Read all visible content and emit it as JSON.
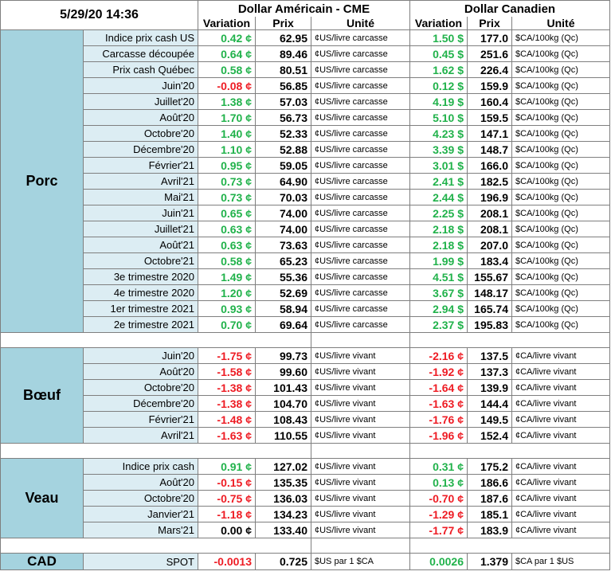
{
  "header": {
    "datetime": "5/29/20 14:36",
    "us_group": "Dollar Américain - CME",
    "ca_group": "Dollar Canadien",
    "variation": "Variation",
    "prix": "Prix",
    "unite": "Unité"
  },
  "colors": {
    "up": "#21b24b",
    "down": "#ee1c24",
    "label_bg": "#a5d3df",
    "row_bg": "#dcedf3"
  },
  "sections": [
    {
      "name": "Porc",
      "rows": [
        {
          "label": "Indice prix cash US",
          "us_var": "0.42 ¢",
          "us_dir": "up",
          "us_price": "62.95",
          "us_unit": "¢US/livre carcasse",
          "ca_var": "1.50 $",
          "ca_dir": "up",
          "ca_price": "177.0",
          "ca_unit": "$CA/100kg (Qc)"
        },
        {
          "label": "Carcasse découpée",
          "us_var": "0.64 ¢",
          "us_dir": "up",
          "us_price": "89.46",
          "us_unit": "¢US/livre carcasse",
          "ca_var": "0.45 $",
          "ca_dir": "up",
          "ca_price": "251.6",
          "ca_unit": "$CA/100kg (Qc)"
        },
        {
          "label": "Prix cash Québec",
          "us_var": "0.58 ¢",
          "us_dir": "up",
          "us_price": "80.51",
          "us_unit": "¢US/livre carcasse",
          "ca_var": "1.62 $",
          "ca_dir": "up",
          "ca_price": "226.4",
          "ca_unit": "$CA/100kg (Qc)"
        },
        {
          "label": "Juin'20",
          "us_var": "-0.08 ¢",
          "us_dir": "down",
          "us_price": "56.85",
          "us_unit": "¢US/livre carcasse",
          "ca_var": "0.12 $",
          "ca_dir": "up",
          "ca_price": "159.9",
          "ca_unit": "$CA/100kg (Qc)"
        },
        {
          "label": "Juillet'20",
          "us_var": "1.38 ¢",
          "us_dir": "up",
          "us_price": "57.03",
          "us_unit": "¢US/livre carcasse",
          "ca_var": "4.19 $",
          "ca_dir": "up",
          "ca_price": "160.4",
          "ca_unit": "$CA/100kg (Qc)"
        },
        {
          "label": "Août'20",
          "us_var": "1.70 ¢",
          "us_dir": "up",
          "us_price": "56.73",
          "us_unit": "¢US/livre carcasse",
          "ca_var": "5.10 $",
          "ca_dir": "up",
          "ca_price": "159.5",
          "ca_unit": "$CA/100kg (Qc)"
        },
        {
          "label": "Octobre'20",
          "us_var": "1.40 ¢",
          "us_dir": "up",
          "us_price": "52.33",
          "us_unit": "¢US/livre carcasse",
          "ca_var": "4.23 $",
          "ca_dir": "up",
          "ca_price": "147.1",
          "ca_unit": "$CA/100kg (Qc)"
        },
        {
          "label": "Décembre'20",
          "us_var": "1.10 ¢",
          "us_dir": "up",
          "us_price": "52.88",
          "us_unit": "¢US/livre carcasse",
          "ca_var": "3.39 $",
          "ca_dir": "up",
          "ca_price": "148.7",
          "ca_unit": "$CA/100kg (Qc)"
        },
        {
          "label": "Février'21",
          "us_var": "0.95 ¢",
          "us_dir": "up",
          "us_price": "59.05",
          "us_unit": "¢US/livre carcasse",
          "ca_var": "3.01 $",
          "ca_dir": "up",
          "ca_price": "166.0",
          "ca_unit": "$CA/100kg (Qc)"
        },
        {
          "label": "Avril'21",
          "us_var": "0.73 ¢",
          "us_dir": "up",
          "us_price": "64.90",
          "us_unit": "¢US/livre carcasse",
          "ca_var": "2.41 $",
          "ca_dir": "up",
          "ca_price": "182.5",
          "ca_unit": "$CA/100kg (Qc)"
        },
        {
          "label": "Mai'21",
          "us_var": "0.73 ¢",
          "us_dir": "up",
          "us_price": "70.03",
          "us_unit": "¢US/livre carcasse",
          "ca_var": "2.44 $",
          "ca_dir": "up",
          "ca_price": "196.9",
          "ca_unit": "$CA/100kg (Qc)"
        },
        {
          "label": "Juin'21",
          "us_var": "0.65 ¢",
          "us_dir": "up",
          "us_price": "74.00",
          "us_unit": "¢US/livre carcasse",
          "ca_var": "2.25 $",
          "ca_dir": "up",
          "ca_price": "208.1",
          "ca_unit": "$CA/100kg (Qc)"
        },
        {
          "label": "Juillet'21",
          "us_var": "0.63 ¢",
          "us_dir": "up",
          "us_price": "74.00",
          "us_unit": "¢US/livre carcasse",
          "ca_var": "2.18 $",
          "ca_dir": "up",
          "ca_price": "208.1",
          "ca_unit": "$CA/100kg (Qc)"
        },
        {
          "label": "Août'21",
          "us_var": "0.63 ¢",
          "us_dir": "up",
          "us_price": "73.63",
          "us_unit": "¢US/livre carcasse",
          "ca_var": "2.18 $",
          "ca_dir": "up",
          "ca_price": "207.0",
          "ca_unit": "$CA/100kg (Qc)"
        },
        {
          "label": "Octobre'21",
          "us_var": "0.58 ¢",
          "us_dir": "up",
          "us_price": "65.23",
          "us_unit": "¢US/livre carcasse",
          "ca_var": "1.99 $",
          "ca_dir": "up",
          "ca_price": "183.4",
          "ca_unit": "$CA/100kg (Qc)"
        },
        {
          "label": "3e trimestre 2020",
          "us_var": "1.49 ¢",
          "us_dir": "up",
          "us_price": "55.36",
          "us_unit": "¢US/livre carcasse",
          "ca_var": "4.51 $",
          "ca_dir": "up",
          "ca_price": "155.67",
          "ca_unit": "$CA/100kg (Qc)"
        },
        {
          "label": "4e trimestre 2020",
          "us_var": "1.20 ¢",
          "us_dir": "up",
          "us_price": "52.69",
          "us_unit": "¢US/livre carcasse",
          "ca_var": "3.67 $",
          "ca_dir": "up",
          "ca_price": "148.17",
          "ca_unit": "$CA/100kg (Qc)"
        },
        {
          "label": "1er trimestre 2021",
          "us_var": "0.93 ¢",
          "us_dir": "up",
          "us_price": "58.94",
          "us_unit": "¢US/livre carcasse",
          "ca_var": "2.94 $",
          "ca_dir": "up",
          "ca_price": "165.74",
          "ca_unit": "$CA/100kg (Qc)"
        },
        {
          "label": "2e trimestre 2021",
          "us_var": "0.70 ¢",
          "us_dir": "up",
          "us_price": "69.64",
          "us_unit": "¢US/livre carcasse",
          "ca_var": "2.37 $",
          "ca_dir": "up",
          "ca_price": "195.83",
          "ca_unit": "$CA/100kg (Qc)"
        }
      ]
    },
    {
      "name": "Bœuf",
      "rows": [
        {
          "label": "Juin'20",
          "us_var": "-1.75 ¢",
          "us_dir": "down",
          "us_price": "99.73",
          "us_unit": "¢US/livre vivant",
          "ca_var": "-2.16 ¢",
          "ca_dir": "down",
          "ca_price": "137.5",
          "ca_unit": "¢CA/livre vivant"
        },
        {
          "label": "Août'20",
          "us_var": "-1.58 ¢",
          "us_dir": "down",
          "us_price": "99.60",
          "us_unit": "¢US/livre vivant",
          "ca_var": "-1.92 ¢",
          "ca_dir": "down",
          "ca_price": "137.3",
          "ca_unit": "¢CA/livre vivant"
        },
        {
          "label": "Octobre'20",
          "us_var": "-1.38 ¢",
          "us_dir": "down",
          "us_price": "101.43",
          "us_unit": "¢US/livre vivant",
          "ca_var": "-1.64 ¢",
          "ca_dir": "down",
          "ca_price": "139.9",
          "ca_unit": "¢CA/livre vivant"
        },
        {
          "label": "Décembre'20",
          "us_var": "-1.38 ¢",
          "us_dir": "down",
          "us_price": "104.70",
          "us_unit": "¢US/livre vivant",
          "ca_var": "-1.63 ¢",
          "ca_dir": "down",
          "ca_price": "144.4",
          "ca_unit": "¢CA/livre vivant"
        },
        {
          "label": "Février'21",
          "us_var": "-1.48 ¢",
          "us_dir": "down",
          "us_price": "108.43",
          "us_unit": "¢US/livre vivant",
          "ca_var": "-1.76 ¢",
          "ca_dir": "down",
          "ca_price": "149.5",
          "ca_unit": "¢CA/livre vivant"
        },
        {
          "label": "Avril'21",
          "us_var": "-1.63 ¢",
          "us_dir": "down",
          "us_price": "110.55",
          "us_unit": "¢US/livre vivant",
          "ca_var": "-1.96 ¢",
          "ca_dir": "down",
          "ca_price": "152.4",
          "ca_unit": "¢CA/livre vivant"
        }
      ]
    },
    {
      "name": "Veau",
      "rows": [
        {
          "label": "Indice prix cash",
          "us_var": "0.91 ¢",
          "us_dir": "up",
          "us_price": "127.02",
          "us_unit": "¢US/livre vivant",
          "ca_var": "0.31 ¢",
          "ca_dir": "up",
          "ca_price": "175.2",
          "ca_unit": "¢CA/livre vivant"
        },
        {
          "label": "Août'20",
          "us_var": "-0.15 ¢",
          "us_dir": "down",
          "us_price": "135.35",
          "us_unit": "¢US/livre vivant",
          "ca_var": "0.13 ¢",
          "ca_dir": "up",
          "ca_price": "186.6",
          "ca_unit": "¢CA/livre vivant"
        },
        {
          "label": "Octobre'20",
          "us_var": "-0.75 ¢",
          "us_dir": "down",
          "us_price": "136.03",
          "us_unit": "¢US/livre vivant",
          "ca_var": "-0.70 ¢",
          "ca_dir": "down",
          "ca_price": "187.6",
          "ca_unit": "¢CA/livre vivant"
        },
        {
          "label": "Janvier'21",
          "us_var": "-1.18 ¢",
          "us_dir": "down",
          "us_price": "134.23",
          "us_unit": "¢US/livre vivant",
          "ca_var": "-1.29 ¢",
          "ca_dir": "down",
          "ca_price": "185.1",
          "ca_unit": "¢CA/livre vivant"
        },
        {
          "label": "Mars'21",
          "us_var": "0.00 ¢",
          "us_dir": "neu",
          "us_price": "133.40",
          "us_unit": "¢US/livre vivant",
          "ca_var": "-1.77 ¢",
          "ca_dir": "down",
          "ca_price": "183.9",
          "ca_unit": "¢CA/livre vivant"
        }
      ]
    },
    {
      "name": "CAD",
      "rows": [
        {
          "label": "SPOT",
          "us_var": "-0.0013",
          "us_dir": "down",
          "us_price": "0.725",
          "us_unit": "$US par 1 $CA",
          "ca_var": "0.0026",
          "ca_dir": "up",
          "ca_price": "1.379",
          "ca_unit": "$CA par 1 $US"
        }
      ]
    }
  ]
}
